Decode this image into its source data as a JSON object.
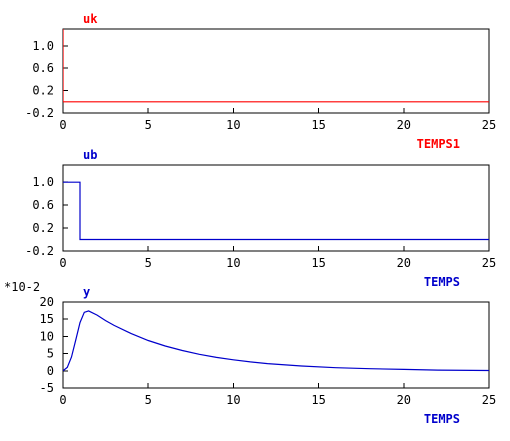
{
  "chart_data": [
    {
      "type": "line",
      "title": "uk",
      "xlabel": "TEMPS1",
      "color": "#ff0000",
      "xlim": [
        0,
        25
      ],
      "ylim": [
        -0.2,
        1.3
      ],
      "xticks": [
        "0",
        "5",
        "10",
        "15",
        "20",
        "25"
      ],
      "yticks": [
        "1.0",
        "0.6",
        "0.2",
        "-0.2"
      ],
      "multiplier": "",
      "grid": false,
      "series": [
        {
          "x": [
            0,
            0,
            25
          ],
          "y": [
            1.3,
            0,
            0
          ]
        }
      ]
    },
    {
      "type": "line",
      "title": "ub",
      "xlabel": "TEMPS",
      "color": "#0000cc",
      "xlim": [
        0,
        25
      ],
      "ylim": [
        -0.2,
        1.3
      ],
      "xticks": [
        "0",
        "5",
        "10",
        "15",
        "20",
        "25"
      ],
      "yticks": [
        "1.0",
        "0.6",
        "0.2",
        "-0.2"
      ],
      "multiplier": "",
      "grid": false,
      "series": [
        {
          "x": [
            0,
            1,
            1,
            25
          ],
          "y": [
            1,
            1,
            0,
            0
          ]
        }
      ]
    },
    {
      "type": "line",
      "title": "y",
      "xlabel": "TEMPS",
      "color": "#0000cc",
      "xlim": [
        0,
        25
      ],
      "ylim": [
        -5,
        20
      ],
      "xticks": [
        "0",
        "5",
        "10",
        "15",
        "20",
        "25"
      ],
      "yticks": [
        "20",
        "15",
        "10",
        "5",
        "0",
        "-5"
      ],
      "multiplier": "*10-2",
      "grid": false,
      "series": [
        {
          "x": [
            0,
            0.25,
            0.5,
            0.75,
            1.0,
            1.25,
            1.5,
            2.0,
            2.5,
            3,
            4,
            5,
            6,
            7,
            8,
            9,
            10,
            11,
            12,
            14,
            16,
            18,
            20,
            22,
            25
          ],
          "y": [
            0,
            1,
            4,
            9,
            14,
            17,
            17.4,
            16.2,
            14.6,
            13.2,
            10.8,
            8.8,
            7.2,
            5.9,
            4.8,
            3.9,
            3.2,
            2.6,
            2.1,
            1.4,
            0.9,
            0.6,
            0.4,
            0.2,
            0.1
          ]
        }
      ]
    }
  ]
}
